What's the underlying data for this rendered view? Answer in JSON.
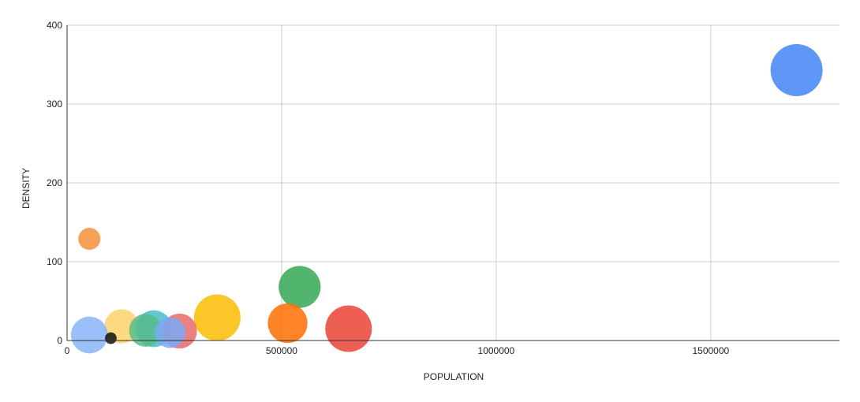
{
  "chart_data": {
    "type": "scatter",
    "subtype": "bubble",
    "title": "",
    "xlabel": "POPULATION",
    "ylabel": "DENSITY",
    "xlim": [
      0,
      1800000
    ],
    "ylim": [
      0,
      400
    ],
    "x_ticks": [
      0,
      500000,
      1000000,
      1500000
    ],
    "y_ticks": [
      0,
      100,
      200,
      300,
      400
    ],
    "x_tick_labels": [
      "0",
      "500000",
      "1000000",
      "1500000"
    ],
    "y_tick_labels": [
      "0",
      "100",
      "200",
      "300",
      "400"
    ],
    "grid": true,
    "legend": "none",
    "points": [
      {
        "x": 1700000,
        "y": 343,
        "size": 1.0,
        "color": "#4285f4"
      },
      {
        "x": 52000,
        "y": 129,
        "size": 0.18,
        "color": "#f6913a"
      },
      {
        "x": 542000,
        "y": 68,
        "size": 0.65,
        "color": "#34a853"
      },
      {
        "x": 350000,
        "y": 29,
        "size": 0.8,
        "color": "#fbbc04"
      },
      {
        "x": 656000,
        "y": 15,
        "size": 0.8,
        "color": "#ea4335"
      },
      {
        "x": 514000,
        "y": 22,
        "size": 0.58,
        "color": "#ff6d01"
      },
      {
        "x": 127000,
        "y": 18,
        "size": 0.43,
        "color": "#fdd36b"
      },
      {
        "x": 202000,
        "y": 15,
        "size": 0.5,
        "color": "#46bdc6"
      },
      {
        "x": 183000,
        "y": 13,
        "size": 0.4,
        "color": "#57bb8a"
      },
      {
        "x": 262000,
        "y": 12,
        "size": 0.45,
        "color": "#e66a6a"
      },
      {
        "x": 240000,
        "y": 10,
        "size": 0.35,
        "color": "#7baaf7"
      },
      {
        "x": 52000,
        "y": 7,
        "size": 0.5,
        "color": "#8ab4f8"
      },
      {
        "x": 102000,
        "y": 3,
        "size": 0.05,
        "color": "#111111"
      }
    ]
  }
}
